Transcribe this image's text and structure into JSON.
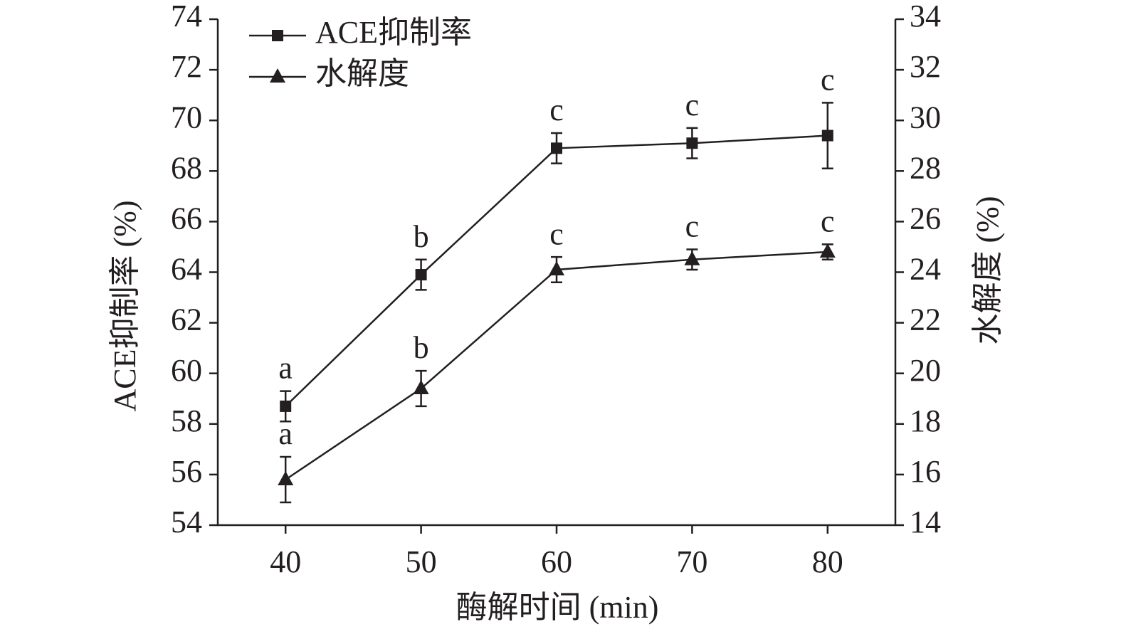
{
  "chart_data": {
    "type": "line",
    "x_label": "酶解时间 (min)",
    "y_label": "ACE抑制率 (%)",
    "y2_label": "水解度 (%)",
    "x": [
      40,
      50,
      60,
      70,
      80
    ],
    "xlim": [
      35,
      85
    ],
    "xticks": [
      40,
      50,
      60,
      70,
      80
    ],
    "ylim": [
      54,
      74
    ],
    "yticks": [
      54,
      56,
      58,
      60,
      62,
      64,
      66,
      68,
      70,
      72,
      74
    ],
    "y2lim": [
      14,
      34
    ],
    "y2ticks": [
      14,
      16,
      18,
      20,
      22,
      24,
      26,
      28,
      30,
      32,
      34
    ],
    "series": [
      {
        "name": "ACE抑制率",
        "color": "#231f20",
        "marker": "square",
        "values": [
          58.7,
          63.9,
          68.9,
          69.1,
          69.4
        ],
        "errors": [
          0.6,
          0.6,
          0.6,
          0.6,
          1.3
        ],
        "labels": [
          "a",
          "b",
          "c",
          "c",
          "c"
        ]
      },
      {
        "name": "水解度",
        "color": "#231f20",
        "marker": "triangle",
        "axis": "y2",
        "values": [
          15.8,
          19.4,
          24.1,
          24.5,
          24.8
        ],
        "errors": [
          0.9,
          0.7,
          0.5,
          0.4,
          0.3
        ],
        "labels": [
          "a",
          "b",
          "c",
          "c",
          "c"
        ]
      }
    ]
  }
}
